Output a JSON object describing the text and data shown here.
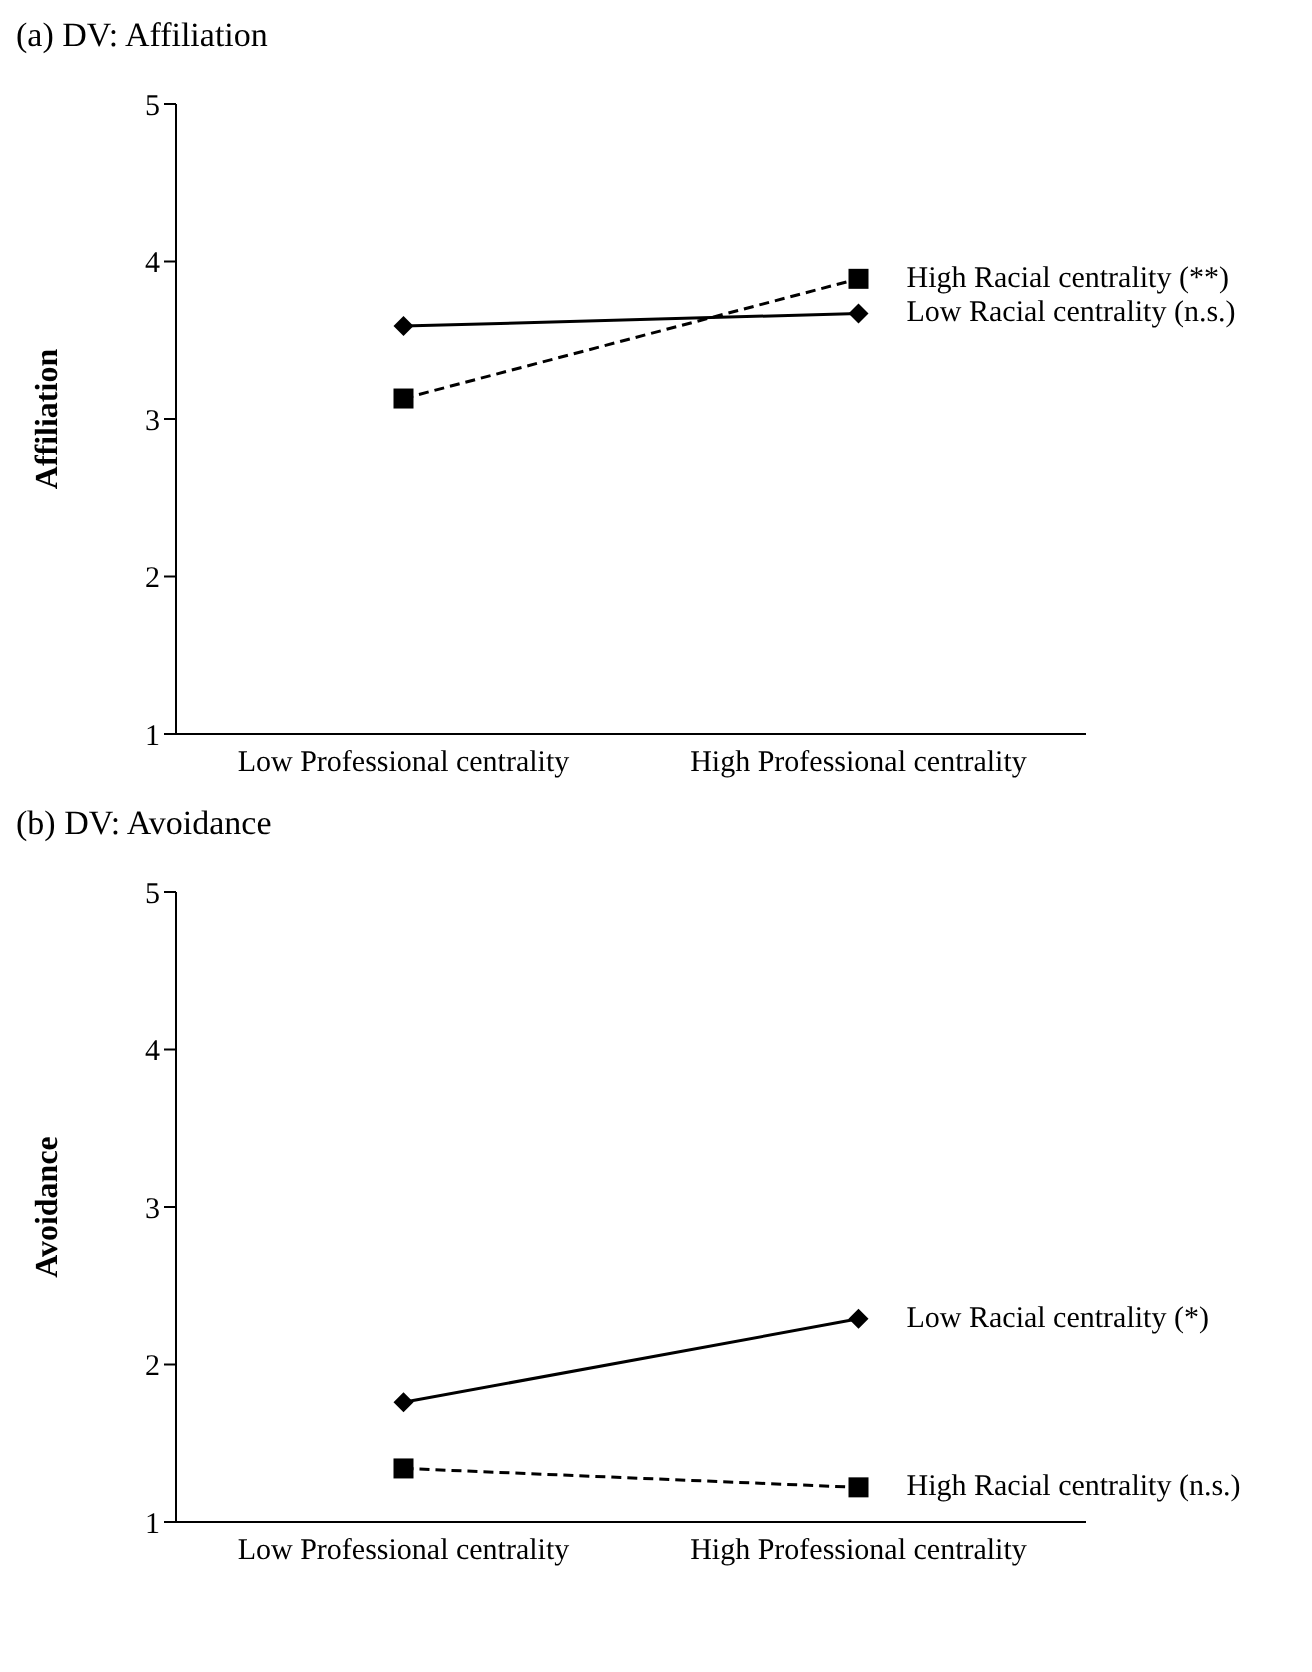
{
  "chart_data": [
    {
      "type": "line",
      "title": "(a) DV: Affiliation",
      "ylabel": "Affiliation",
      "categories": [
        "Low Professional centrality",
        "High Professional centrality"
      ],
      "ylim": [
        1,
        5
      ],
      "yticks": [
        1,
        2,
        3,
        4,
        5
      ],
      "series": [
        {
          "name": "Low Racial centrality (n.s.)",
          "color": "#000000",
          "values": [
            3.59,
            3.67
          ],
          "marker": "diamond",
          "line_style": "solid"
        },
        {
          "name": "High Racial centrality (**)",
          "color": "#000000",
          "values": [
            3.13,
            3.89
          ],
          "marker": "square",
          "line_style": "dashed"
        }
      ]
    },
    {
      "type": "line",
      "title": "(b) DV: Avoidance",
      "ylabel": "Avoidance",
      "categories": [
        "Low Professional centrality",
        "High Professional centrality"
      ],
      "ylim": [
        1,
        5
      ],
      "yticks": [
        1,
        2,
        3,
        4,
        5
      ],
      "series": [
        {
          "name": "Low Racial centrality (*)",
          "color": "#000000",
          "values": [
            1.76,
            2.29
          ],
          "marker": "diamond",
          "line_style": "solid"
        },
        {
          "name": "High Racial centrality (n.s.)",
          "color": "#000000",
          "values": [
            1.34,
            1.22
          ],
          "marker": "square",
          "line_style": "dashed"
        }
      ]
    }
  ]
}
